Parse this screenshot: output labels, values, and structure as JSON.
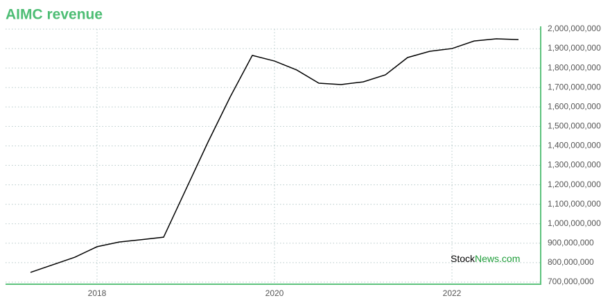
{
  "chart_data": {
    "type": "line",
    "title": "AIMC revenue",
    "watermark": [
      "Stock",
      "News.com"
    ],
    "x": [
      2017.25,
      2017.75,
      2018.0,
      2018.25,
      2018.5,
      2018.75,
      2019.25,
      2019.5,
      2019.75,
      2020.0,
      2020.25,
      2020.5,
      2020.75,
      2021.0,
      2021.25,
      2021.5,
      2021.75,
      2022.0,
      2022.25,
      2022.5,
      2022.75
    ],
    "series": [
      {
        "name": "AIMC revenue",
        "color": "#000000",
        "values": [
          750000000,
          828000000,
          882000000,
          906000000,
          918000000,
          931000000,
          1419000000,
          1651000000,
          1865000000,
          1836000000,
          1790000000,
          1722000000,
          1715000000,
          1729000000,
          1765000000,
          1854000000,
          1886000000,
          1900000000,
          1939000000,
          1950000000,
          1946000000
        ]
      }
    ],
    "xlim": [
      2017,
      2023
    ],
    "xticks": [
      2018,
      2020,
      2022
    ],
    "ylim": [
      700000000,
      2000000000
    ],
    "yticks": [
      {
        "value": 700000000,
        "label": "700,000,000"
      },
      {
        "value": 800000000,
        "label": "800,000,000"
      },
      {
        "value": 900000000,
        "label": "900,000,000"
      },
      {
        "value": 1000000000,
        "label": "1,000,000,000"
      },
      {
        "value": 1100000000,
        "label": "1,100,000,000"
      },
      {
        "value": 1200000000,
        "label": "1,200,000,000"
      },
      {
        "value": 1300000000,
        "label": "1,300,000,000"
      },
      {
        "value": 1400000000,
        "label": "1,400,000,000"
      },
      {
        "value": 1500000000,
        "label": "1,500,000,000"
      },
      {
        "value": 1600000000,
        "label": "1,600,000,000"
      },
      {
        "value": 1700000000,
        "label": "1,700,000,000"
      },
      {
        "value": 1800000000,
        "label": "1,800,000,000"
      },
      {
        "value": 1900000000,
        "label": "1,900,000,000"
      },
      {
        "value": 2000000000,
        "label": "2,000,000,000"
      }
    ],
    "grid": true
  }
}
